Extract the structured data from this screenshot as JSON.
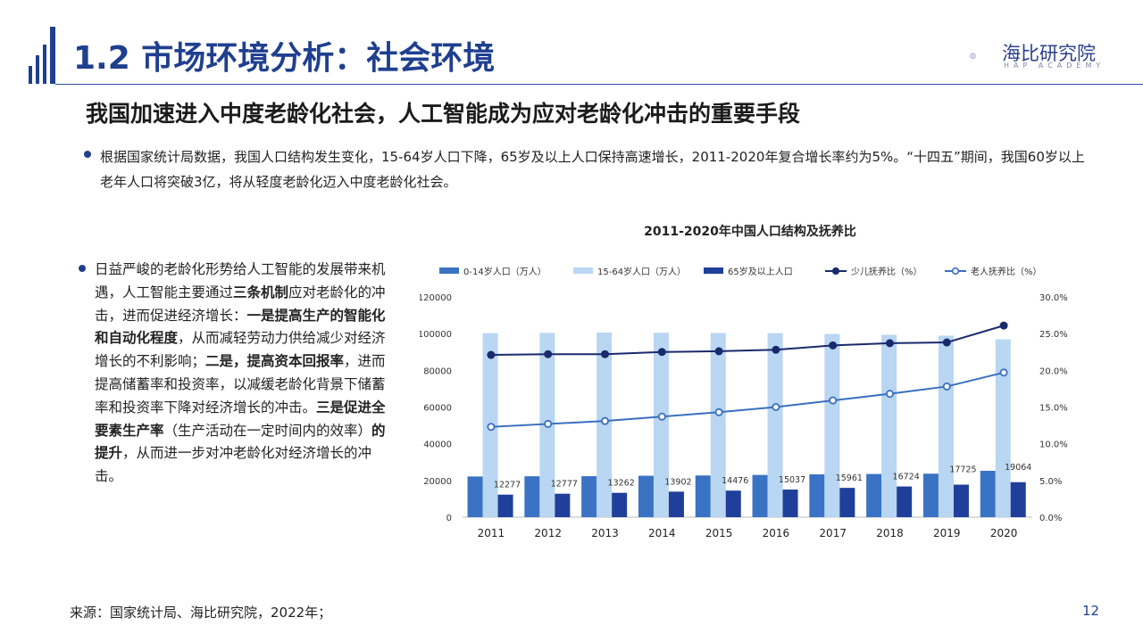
{
  "header": {
    "title": "1.2 市场环境分析：社会环境",
    "logo_name": "海比研究院",
    "logo_sub": "HAP ACADEMY"
  },
  "subtitle": "我国加速进入中度老龄化社会，人工智能成为应对老龄化冲击的重要手段",
  "paragraph1": "根据国家统计局数据，我国人口结构发生变化，15-64岁人口下降，65岁及以上人口保持高速增长，2011-2020年复合增长率约为5%。“十四五”期间，我国60岁以上老年人口将突破3亿，将从轻度老龄化迈入中度老龄化社会。",
  "paragraph2": {
    "p1": "日益严峻的老龄化形势给人工智能的发展带来机遇，人工智能主要通过",
    "b1": "三条机制",
    "p2": "应对老龄化的冲击，进而促进经济增长：",
    "b2": "一是提高生产的智能化和自动化程度",
    "p3": "，从而减轻劳动力供给减少对经济增长的不利影响；",
    "b3": "二是，提高资本回报率",
    "p4": "，进而提高储蓄率和投资率，以减缓老龄化背景下储蓄率和投资率下降对经济增长的冲击。",
    "b4": "三是促进全要素生产率",
    "p5": "（生产活动在一定时间内的效率）",
    "b5": "的提升",
    "p6": "，从而进一步对冲老龄化对经济增长的冲击。"
  },
  "chart_data": {
    "type": "bar",
    "title": "2011-2020年中国人口结构及抚养比",
    "categories": [
      "2011",
      "2012",
      "2013",
      "2014",
      "2015",
      "2016",
      "2017",
      "2018",
      "2019",
      "2020"
    ],
    "left_axis": {
      "ylim": [
        0,
        120000
      ],
      "ticks": [
        "0",
        "20000",
        "40000",
        "60000",
        "80000",
        "100000",
        "120000"
      ]
    },
    "right_axis": {
      "ylim": [
        0,
        0.3
      ],
      "ticks": [
        "0.0%",
        "5.0%",
        "10.0%",
        "15.0%",
        "20.0%",
        "25.0%",
        "30.0%"
      ]
    },
    "legend_position": "top",
    "series": [
      {
        "name": "0-14岁人口（万人）",
        "kind": "bar",
        "axis": "left",
        "color": "#3a73c4",
        "values": [
          22164,
          22287,
          22329,
          22558,
          22715,
          23008,
          23348,
          23523,
          23689,
          25277
        ]
      },
      {
        "name": "15-64岁人口（万人）",
        "kind": "bar",
        "axis": "left",
        "color": "#b9d6f2",
        "values": [
          100283,
          100403,
          100582,
          100469,
          100361,
          100260,
          99829,
          99357,
          98910,
          96871
        ]
      },
      {
        "name": "65岁及以上人口",
        "kind": "bar",
        "axis": "left",
        "color": "#1f3f9a",
        "values": [
          12277,
          12777,
          13262,
          13902,
          14476,
          15037,
          15961,
          16724,
          17725,
          19064
        ],
        "labels": [
          "12277",
          "12777",
          "13262",
          "13902",
          "14476",
          "15037",
          "15961",
          "16724",
          "17725",
          "19064"
        ]
      },
      {
        "name": "少儿抚养比（%）",
        "kind": "line",
        "axis": "right",
        "color": "#1a2a6c",
        "marker": "filled",
        "values": [
          0.221,
          0.222,
          0.222,
          0.225,
          0.226,
          0.228,
          0.234,
          0.237,
          0.238,
          0.261
        ]
      },
      {
        "name": "老人抚养比（%）",
        "kind": "line",
        "axis": "right",
        "color": "#3a6fbf",
        "marker": "hollow",
        "values": [
          0.123,
          0.127,
          0.131,
          0.137,
          0.143,
          0.15,
          0.159,
          0.168,
          0.178,
          0.197
        ]
      }
    ]
  },
  "footer": {
    "source": "来源：国家统计局、海比研究院，2022年；",
    "page_number": "12"
  }
}
